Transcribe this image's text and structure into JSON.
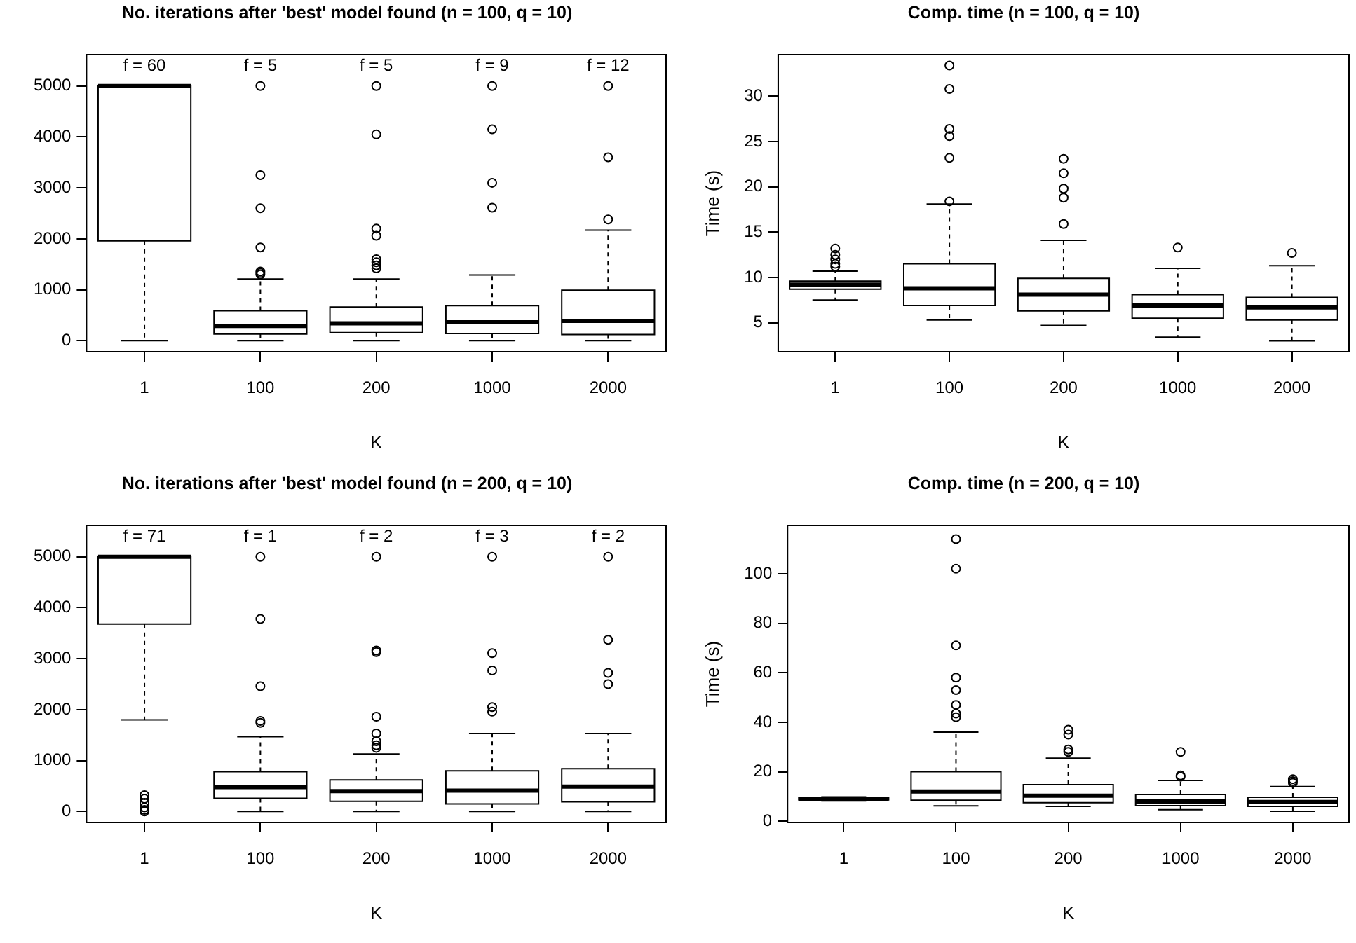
{
  "chart_data": [
    {
      "type": "box",
      "title": "No. iterations after 'best' model found (n = 100, q = 10)",
      "xlabel": "K",
      "categories": [
        "1",
        "100",
        "200",
        "1000",
        "2000"
      ],
      "ylim": [
        -216,
        5616
      ],
      "yticks": [
        0,
        1000,
        2000,
        3000,
        4000,
        5000
      ],
      "annotations": [
        "f = 60",
        "f = 5",
        "f = 5",
        "f = 9",
        "f = 12"
      ],
      "boxes": [
        {
          "low": 0,
          "q1": 1960,
          "median": 5000,
          "q3": 5000,
          "high": 5000
        },
        {
          "low": 0,
          "q1": 130,
          "median": 290,
          "q3": 590,
          "high": 1210,
          "outliers": [
            1300,
            1330,
            1360,
            1830,
            2600,
            3250,
            5000
          ]
        },
        {
          "low": 0,
          "q1": 160,
          "median": 340,
          "q3": 660,
          "high": 1210,
          "outliers": [
            1420,
            1480,
            1540,
            1600,
            2060,
            2200,
            4050,
            5000
          ]
        },
        {
          "low": 0,
          "q1": 140,
          "median": 360,
          "q3": 690,
          "high": 1290,
          "outliers": [
            2610,
            3100,
            4150,
            5000
          ]
        },
        {
          "low": 0,
          "q1": 120,
          "median": 390,
          "q3": 990,
          "high": 2170,
          "outliers": [
            2380,
            3600,
            5000
          ]
        }
      ]
    },
    {
      "type": "box",
      "title": "Comp. time (n = 100, q = 10)",
      "xlabel": "K",
      "ylabel": "Time (s)",
      "categories": [
        "1",
        "100",
        "200",
        "1000",
        "2000"
      ],
      "ylim": [
        1.8,
        34.6
      ],
      "yticks": [
        5,
        10,
        15,
        20,
        25,
        30
      ],
      "boxes": [
        {
          "low": 7.5,
          "q1": 8.7,
          "median": 9.2,
          "q3": 9.6,
          "high": 10.7,
          "outliers": [
            11.2,
            11.5,
            12,
            12.5,
            13.2
          ]
        },
        {
          "low": 5.3,
          "q1": 6.9,
          "median": 8.8,
          "q3": 11.5,
          "high": 18.1,
          "outliers": [
            18.4,
            23.2,
            25.6,
            26.4,
            30.8,
            33.4
          ]
        },
        {
          "low": 4.7,
          "q1": 6.3,
          "median": 8.1,
          "q3": 9.9,
          "high": 14.1,
          "outliers": [
            15.9,
            18.8,
            19.8,
            21.5,
            23.1
          ]
        },
        {
          "low": 3.4,
          "q1": 5.5,
          "median": 6.9,
          "q3": 8.1,
          "high": 11,
          "outliers": [
            13.3
          ]
        },
        {
          "low": 3,
          "q1": 5.3,
          "median": 6.7,
          "q3": 7.8,
          "high": 11.3,
          "outliers": [
            12.7
          ]
        }
      ]
    },
    {
      "type": "box",
      "title": "No. iterations after 'best' model found (n = 200, q = 10)",
      "xlabel": "K",
      "categories": [
        "1",
        "100",
        "200",
        "1000",
        "2000"
      ],
      "ylim": [
        -216,
        5616
      ],
      "yticks": [
        0,
        1000,
        2000,
        3000,
        4000,
        5000
      ],
      "annotations": [
        "f = 71",
        "f = 1",
        "f = 2",
        "f = 3",
        "f = 2"
      ],
      "boxes": [
        {
          "low": 1800,
          "q1": 3680,
          "median": 5000,
          "q3": 5000,
          "high": 5000,
          "outliers": [
            0,
            30,
            80,
            170,
            250,
            320
          ]
        },
        {
          "low": 0,
          "q1": 260,
          "median": 480,
          "q3": 780,
          "high": 1470,
          "outliers": [
            1740,
            1780,
            2460,
            3780,
            5000
          ]
        },
        {
          "low": 0,
          "q1": 200,
          "median": 400,
          "q3": 620,
          "high": 1130,
          "outliers": [
            1250,
            1300,
            1380,
            1530,
            1860,
            3130,
            3160,
            5000
          ]
        },
        {
          "low": 0,
          "q1": 150,
          "median": 410,
          "q3": 800,
          "high": 1530,
          "outliers": [
            1960,
            2050,
            2770,
            3110,
            5000
          ]
        },
        {
          "low": 0,
          "q1": 190,
          "median": 490,
          "q3": 840,
          "high": 1530,
          "outliers": [
            2500,
            2720,
            3370,
            5000
          ]
        }
      ]
    },
    {
      "type": "box",
      "title": "Comp. time (n = 200, q = 10)",
      "xlabel": "K",
      "ylabel": "Time (s)",
      "categories": [
        "1",
        "100",
        "200",
        "1000",
        "2000"
      ],
      "ylim": [
        -0.5,
        119.5
      ],
      "yticks": [
        0,
        20,
        40,
        60,
        80,
        100
      ],
      "boxes": [
        {
          "low": 8.2,
          "q1": 8.6,
          "median": 9,
          "q3": 9.4,
          "high": 9.8
        },
        {
          "low": 6.2,
          "q1": 8.5,
          "median": 12,
          "q3": 20,
          "high": 36,
          "outliers": [
            42,
            43.5,
            47,
            53,
            58,
            71,
            102,
            114
          ]
        },
        {
          "low": 6,
          "q1": 7.5,
          "median": 10.3,
          "q3": 14.8,
          "high": 25.5,
          "outliers": [
            28,
            29,
            35,
            37
          ]
        },
        {
          "low": 4.7,
          "q1": 6.3,
          "median": 8,
          "q3": 10.8,
          "high": 16.5,
          "outliers": [
            18,
            18.5,
            28
          ]
        },
        {
          "low": 4,
          "q1": 6,
          "median": 7.8,
          "q3": 9.7,
          "high": 14,
          "outliers": [
            15.5,
            16.2,
            17
          ]
        }
      ]
    }
  ]
}
